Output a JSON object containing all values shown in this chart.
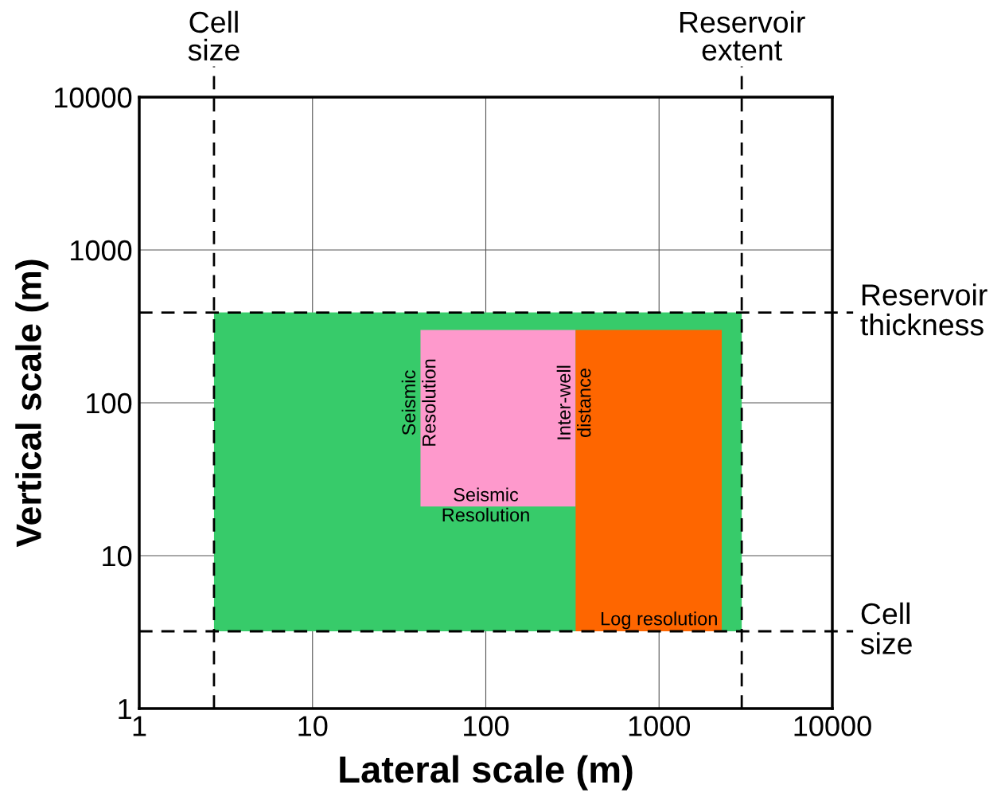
{
  "chart_data": {
    "type": "area",
    "xlabel": "Lateral scale (m)",
    "ylabel": "Vertical scale (m)",
    "log": "xy",
    "grid": true,
    "xlim": [
      1,
      10000
    ],
    "ylim": [
      1,
      10000
    ],
    "xticks": [
      1,
      10,
      100,
      1000,
      10000
    ],
    "yticks": [
      1,
      10,
      100,
      1000,
      10000
    ],
    "series": [
      {
        "color": "#37cb6a",
        "x": [
          2.7,
          2.7,
          3000,
          3000,
          2.7
        ],
        "values": [
          3.2,
          390,
          390,
          3.2,
          3.2
        ]
      },
      {
        "color": "#fe99cc",
        "x": [
          42,
          42,
          330,
          330,
          42
        ],
        "values": [
          21,
          300,
          300,
          21,
          21
        ]
      },
      {
        "color": "#fe6600",
        "x": [
          330,
          330,
          2300,
          2300,
          330
        ],
        "values": [
          3.2,
          300,
          300,
          3.2,
          3.2
        ]
      }
    ],
    "ref_lines": [
      {
        "axis": "x",
        "value": 2.7,
        "label": "Cell\nsize",
        "color": "#000000",
        "line_style": "dashed"
      },
      {
        "axis": "x",
        "value": 3000,
        "label": "Reservoir\nextent",
        "color": "#000000",
        "line_style": "dashed"
      },
      {
        "axis": "y",
        "value": 390,
        "label": "Reservoir\nthickness",
        "color": "#000000",
        "line_style": "dashed"
      },
      {
        "axis": "y",
        "value": 3.2,
        "label": "Cell\nsize",
        "color": "#000000",
        "line_style": "dashed"
      }
    ],
    "annotations": [
      {
        "text": "Seismic\nResolution",
        "x": 42,
        "y": 100
      },
      {
        "text": "Inter-well\ndistance",
        "x": 330,
        "y": 100
      },
      {
        "text": "Seismic\nResolution",
        "x": 100,
        "y": 21
      },
      {
        "text": "Log resolution",
        "x": 1000,
        "y": 3.2
      }
    ]
  }
}
